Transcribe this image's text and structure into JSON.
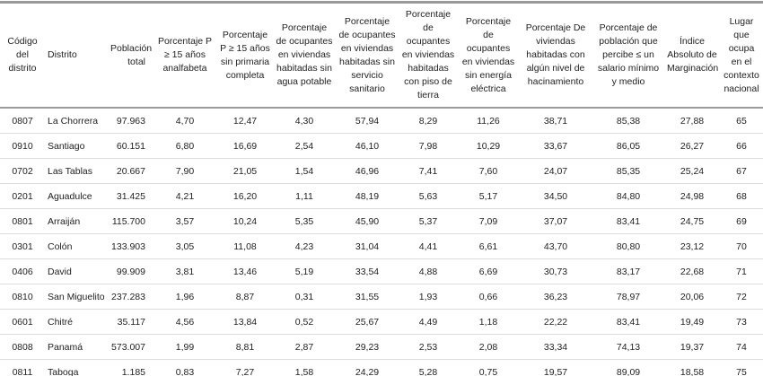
{
  "table": {
    "headers": [
      "Código del distrito",
      "Distrito",
      "Población total",
      "Porcentaje P ≥ 15 años analfabeta",
      "Porcentaje P ≥ 15 años sin primaria completa",
      "Porcentaje de ocupantes en viviendas habitadas sin agua potable",
      "Porcentaje de ocupantes en viviendas habitadas sin servicio sanitario",
      "Porcentaje de ocupantes en viviendas habitadas con piso de tierra",
      "Porcentaje de ocupantes en viviendas sin energía eléctrica",
      "Porcentaje De viviendas habitadas con algún nivel de hacinamiento",
      "Porcentaje de población que percibe ≤ un salario mínimo y medio",
      "Índice Absoluto de Marginación",
      "Lugar que ocupa en el contexto nacional"
    ],
    "rows": [
      [
        "0807",
        "La Chorrera",
        "97.963",
        "4,70",
        "12,47",
        "4,30",
        "57,94",
        "8,29",
        "11,26",
        "38,71",
        "85,38",
        "27,88",
        "65"
      ],
      [
        "0910",
        "Santiago",
        "60.151",
        "6,80",
        "16,69",
        "2,54",
        "46,10",
        "7,98",
        "10,29",
        "33,67",
        "86,05",
        "26,27",
        "66"
      ],
      [
        "0702",
        "Las Tablas",
        "20.667",
        "7,90",
        "21,05",
        "1,54",
        "46,96",
        "7,41",
        "7,60",
        "24,07",
        "85,35",
        "25,24",
        "67"
      ],
      [
        "0201",
        "Aguadulce",
        "31.425",
        "4,21",
        "16,20",
        "1,11",
        "48,19",
        "5,63",
        "5,17",
        "34,50",
        "84,80",
        "24,98",
        "68"
      ],
      [
        "0801",
        "Arraiján",
        "115.700",
        "3,57",
        "10,24",
        "5,35",
        "45,90",
        "5,37",
        "7,09",
        "37,07",
        "83,41",
        "24,75",
        "69"
      ],
      [
        "0301",
        "Colón",
        "133.903",
        "3,05",
        "11,08",
        "4,23",
        "31,04",
        "4,41",
        "6,61",
        "43,70",
        "80,80",
        "23,12",
        "70"
      ],
      [
        "0406",
        "David",
        "99.909",
        "3,81",
        "13,46",
        "5,19",
        "33,54",
        "4,88",
        "6,69",
        "30,73",
        "83,17",
        "22,68",
        "71"
      ],
      [
        "0810",
        "San Miguelito",
        "237.283",
        "1,96",
        "8,87",
        "0,31",
        "31,55",
        "1,93",
        "0,66",
        "36,23",
        "78,97",
        "20,06",
        "72"
      ],
      [
        "0601",
        "Chitré",
        "35.117",
        "4,56",
        "13,84",
        "0,52",
        "25,67",
        "4,49",
        "1,18",
        "22,22",
        "83,41",
        "19,49",
        "73"
      ],
      [
        "0808",
        "Panamá",
        "573.007",
        "1,99",
        "8,81",
        "2,87",
        "29,23",
        "2,53",
        "2,08",
        "33,34",
        "74,13",
        "19,37",
        "74"
      ],
      [
        "0811",
        "Taboga",
        "1.185",
        "0,83",
        "7,27",
        "1,58",
        "24,29",
        "5,28",
        "0,75",
        "19,57",
        "89,09",
        "18,58",
        "75"
      ]
    ]
  }
}
